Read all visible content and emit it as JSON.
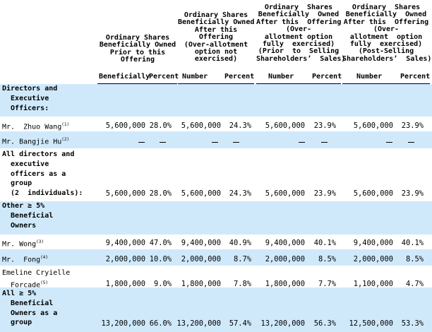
{
  "headers": {
    "prior": "Ordinary Shares\nBeneficially Owned\nPrior to this\nOffering",
    "after": "Ordinary Shares\nBeneficially Owned\nAfter this\nOffering\n(Over-allotment\noption not\nexercised)",
    "prior_sell": "Ordinary  Shares\nBeneficially  Owned\nAfter this  Offering\n(Over-\nallotment option\nfully  exercised)\n(Prior  to  Selling\nShareholders’  Sales)",
    "post_sell": "Ordinary  Shares\nBeneficially  Owned\nAfter this  Offering\n(Over-\nallotment  option\nfully  exercised)\n(Post-Selling\nShareholders’  Sales)"
  },
  "subheaders": {
    "c1": "Beneficially",
    "c2": "Percent",
    "c3": "Number",
    "c4": "Percent",
    "c5": "Number",
    "c6": "Percent",
    "c7": "Number",
    "c8": "Percent"
  },
  "sections": {
    "directors": "Directors and\n  Executive\n  Officers:",
    "all_directors": "All directors and\n  executive\n  officers as a\n  group\n  (2  individuals):",
    "other5": "Other ≥ 5%\n  Beneficial\n  Owners",
    "all5": "All ≥ 5%\n  Beneficial\n  Owners as a\n  group"
  },
  "rows": {
    "zhuo": {
      "name": "Mr.  Zhuo Wang",
      "sup": "(1)",
      "values": [
        "5,600,000",
        "28.0%",
        "5,600,000",
        "24.3%",
        "5,600,000",
        "23.9%",
        "5,600,000",
        "23.9%"
      ]
    },
    "hu": {
      "name": "Mr. Bangjie Hu",
      "sup": "(2)"
    },
    "all_dir": {
      "values": [
        "5,600,000",
        "28.0%",
        "5,600,000",
        "24.3%",
        "5,600,000",
        "23.9%",
        "5,600,000",
        "23.9%"
      ]
    },
    "wong": {
      "name": "Mr. Wong",
      "sup": "(3)",
      "values": [
        "9,400,000",
        "47.0%",
        "9,400,000",
        "40.9%",
        "9,400,000",
        "40.1%",
        "9,400,000",
        "40.1%"
      ]
    },
    "fong": {
      "name": "Mr.  Fong",
      "sup": "(4)",
      "values": [
        "2,000,000",
        "10.0%",
        "2,000,000",
        "8.7%",
        "2,000,000",
        "8.5%",
        "2,000,000",
        "8.5%"
      ]
    },
    "forcade": {
      "name": "Emeline Cryielle\n  Forcade",
      "sup": "(5)",
      "values": [
        "1,800,000",
        "9.0%",
        "1,800,000",
        "7.8%",
        "1,800,000",
        "7.7%",
        "1,100,000",
        "4.7%"
      ]
    },
    "all5": {
      "values": [
        "13,200,000",
        "66.0%",
        "13,200,000",
        "57.4%",
        "13,200,000",
        "56.3%",
        "12,500,000",
        "53.3%"
      ]
    }
  }
}
